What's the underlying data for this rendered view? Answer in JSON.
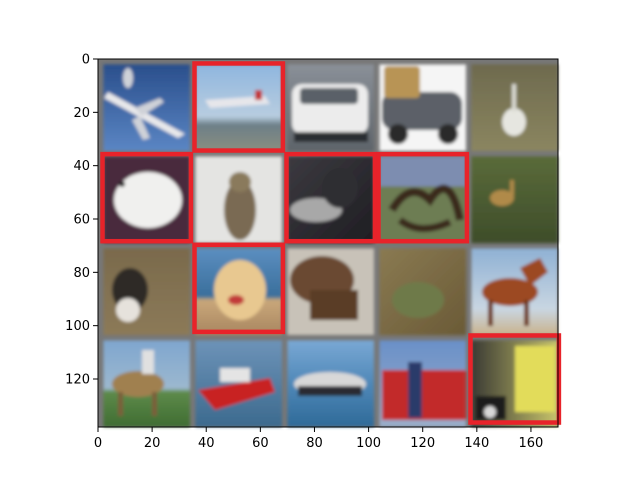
{
  "image_grid": {
    "rows": 4,
    "cols": 5,
    "grid_color": "#777777",
    "highlight_color": "#e8232a",
    "tiles": [
      {
        "row": 0,
        "col": 0,
        "subject": "airplane-photo",
        "highlighted": false
      },
      {
        "row": 0,
        "col": 1,
        "subject": "airplane-photo",
        "highlighted": true
      },
      {
        "row": 0,
        "col": 2,
        "subject": "white-car-photo",
        "highlighted": false
      },
      {
        "row": 0,
        "col": 3,
        "subject": "vintage-car-photo",
        "highlighted": false
      },
      {
        "row": 0,
        "col": 4,
        "subject": "white-bird-photo",
        "highlighted": false
      },
      {
        "row": 1,
        "col": 0,
        "subject": "white-bird-photo",
        "highlighted": true
      },
      {
        "row": 1,
        "col": 1,
        "subject": "cat-photo",
        "highlighted": false
      },
      {
        "row": 1,
        "col": 2,
        "subject": "cat-photo",
        "highlighted": true
      },
      {
        "row": 1,
        "col": 3,
        "subject": "deer-antlers-photo",
        "highlighted": true
      },
      {
        "row": 1,
        "col": 4,
        "subject": "deer-photo",
        "highlighted": false
      },
      {
        "row": 2,
        "col": 0,
        "subject": "dog-photo",
        "highlighted": false
      },
      {
        "row": 2,
        "col": 1,
        "subject": "dog-photo",
        "highlighted": true
      },
      {
        "row": 2,
        "col": 2,
        "subject": "frog-photo",
        "highlighted": false
      },
      {
        "row": 2,
        "col": 3,
        "subject": "frog-photo",
        "highlighted": false
      },
      {
        "row": 2,
        "col": 4,
        "subject": "horse-photo",
        "highlighted": false
      },
      {
        "row": 3,
        "col": 0,
        "subject": "horse-rider-photo",
        "highlighted": false
      },
      {
        "row": 3,
        "col": 1,
        "subject": "speedboat-photo",
        "highlighted": false
      },
      {
        "row": 3,
        "col": 2,
        "subject": "ship-photo",
        "highlighted": false
      },
      {
        "row": 3,
        "col": 3,
        "subject": "fire-truck-photo",
        "highlighted": false
      },
      {
        "row": 3,
        "col": 4,
        "subject": "truck-photo",
        "highlighted": true
      }
    ]
  },
  "axes": {
    "x_range": [
      0,
      170
    ],
    "y_range": [
      0,
      138
    ],
    "x_ticks": [
      {
        "value": 0,
        "label": "0"
      },
      {
        "value": 20,
        "label": "20"
      },
      {
        "value": 40,
        "label": "40"
      },
      {
        "value": 60,
        "label": "60"
      },
      {
        "value": 80,
        "label": "80"
      },
      {
        "value": 100,
        "label": "100"
      },
      {
        "value": 120,
        "label": "120"
      },
      {
        "value": 140,
        "label": "140"
      },
      {
        "value": 160,
        "label": "160"
      }
    ],
    "y_ticks": [
      {
        "value": 0,
        "label": "0"
      },
      {
        "value": 20,
        "label": "20"
      },
      {
        "value": 40,
        "label": "40"
      },
      {
        "value": 60,
        "label": "60"
      },
      {
        "value": 80,
        "label": "80"
      },
      {
        "value": 100,
        "label": "100"
      },
      {
        "value": 120,
        "label": "120"
      }
    ]
  }
}
